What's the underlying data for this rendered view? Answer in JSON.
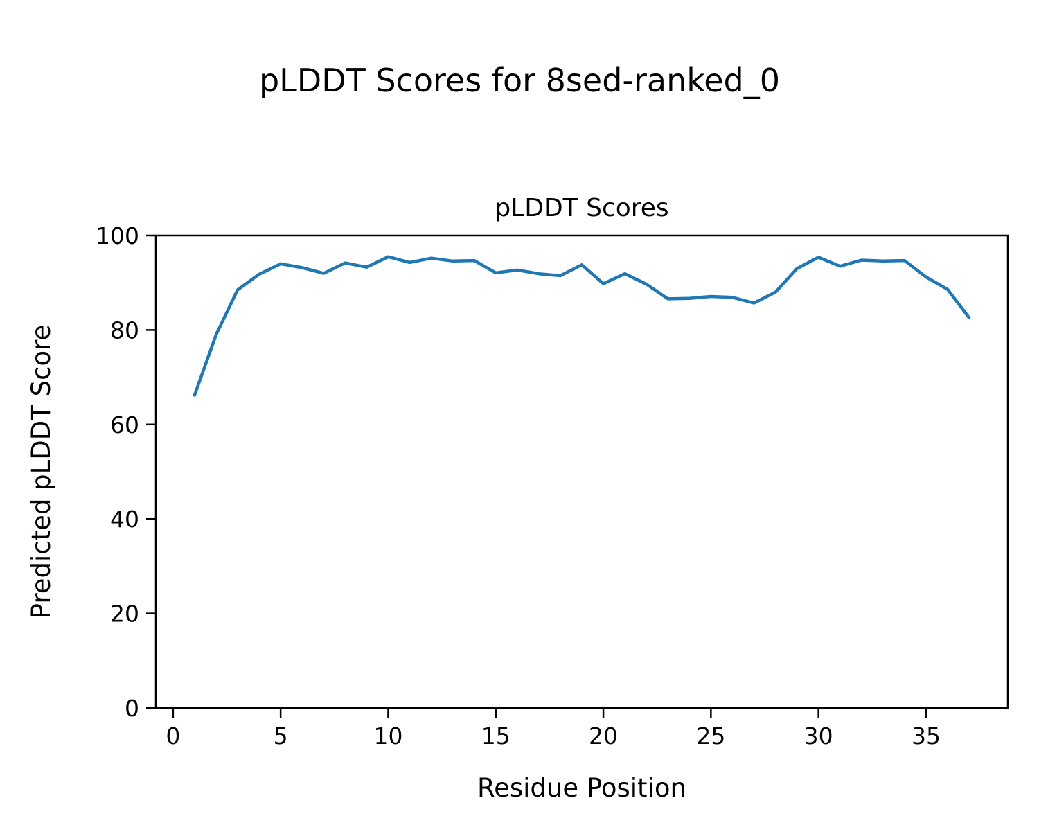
{
  "figure": {
    "suptitle": "pLDDT Scores for 8sed-ranked_0"
  },
  "chart_data": {
    "type": "line",
    "title": "pLDDT Scores",
    "suptitle": "pLDDT Scores for 8sed-ranked_0",
    "xlabel": "Residue Position",
    "ylabel": "Predicted pLDDT Score",
    "legend": null,
    "grid": false,
    "line_color": "#1f77b4",
    "line_width": 4.5,
    "xlim": [
      -0.8,
      38.8
    ],
    "ylim": [
      0,
      100
    ],
    "xticks": [
      0,
      5,
      10,
      15,
      20,
      25,
      30,
      35
    ],
    "yticks": [
      0,
      20,
      40,
      60,
      80,
      100
    ],
    "x": [
      1,
      2,
      3,
      4,
      5,
      6,
      7,
      8,
      9,
      10,
      11,
      12,
      13,
      14,
      15,
      16,
      17,
      18,
      19,
      20,
      21,
      22,
      23,
      24,
      25,
      26,
      27,
      28,
      29,
      30,
      31,
      32,
      33,
      34,
      35,
      36,
      37
    ],
    "y": [
      66.2,
      79.0,
      88.5,
      91.8,
      94.0,
      93.2,
      92.0,
      94.2,
      93.3,
      95.5,
      94.3,
      95.2,
      94.6,
      94.7,
      92.1,
      92.7,
      91.9,
      91.5,
      93.8,
      89.8,
      91.9,
      89.7,
      86.6,
      86.7,
      87.1,
      86.9,
      85.7,
      88.0,
      93.0,
      95.4,
      93.5,
      94.8,
      94.6,
      94.7,
      91.2,
      88.6,
      82.6
    ]
  }
}
